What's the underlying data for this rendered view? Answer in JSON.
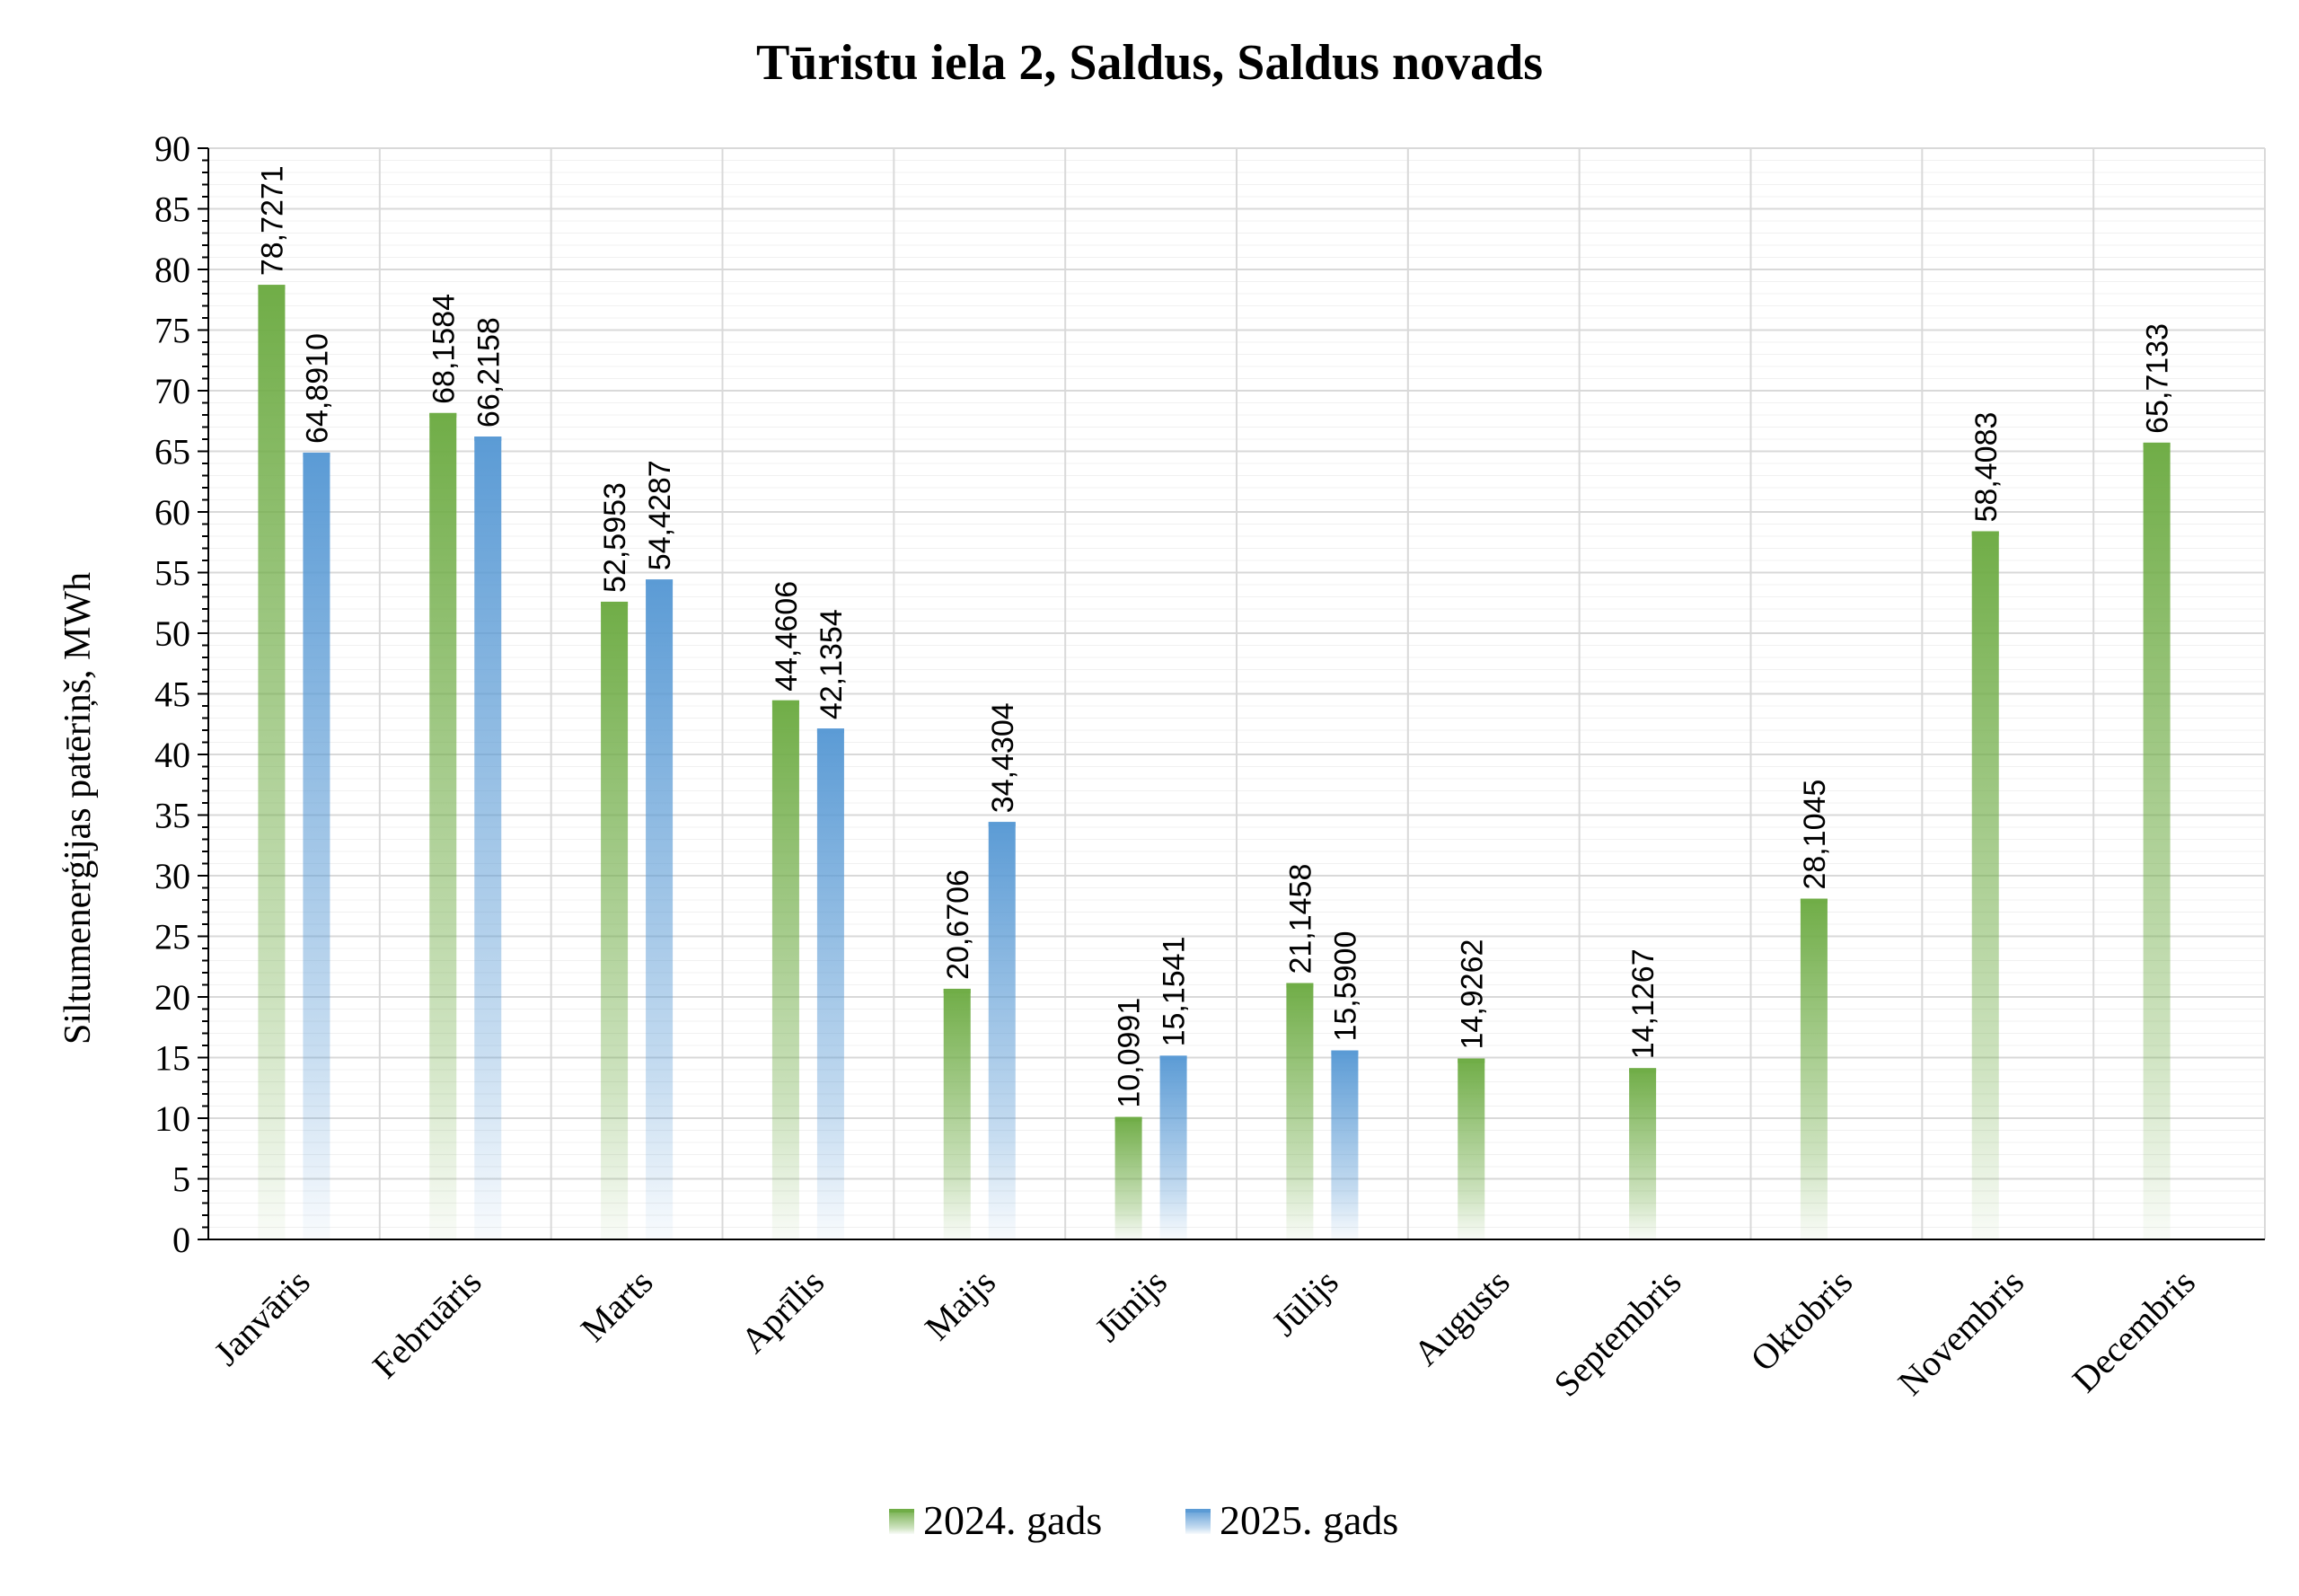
{
  "chart_data": {
    "type": "bar",
    "title": "Tūristu iela 2, Saldus, Saldus novads",
    "ylabel": "Siltumenerģijas patēriņš, MWh",
    "xlabel": "",
    "ylim": [
      0,
      90
    ],
    "ytick_step": 5,
    "grid": true,
    "legend_position": "bottom",
    "categories": [
      "Janvāris",
      "Februāris",
      "Marts",
      "Aprīlis",
      "Maijs",
      "Jūnijs",
      "Jūlijs",
      "Augusts",
      "Septembris",
      "Oktobris",
      "Novembris",
      "Decembris"
    ],
    "series": [
      {
        "name": "2024. gads",
        "color": "#70AD47",
        "values": [
          78.7271,
          68.1584,
          52.5953,
          44.4606,
          20.6706,
          10.0991,
          21.1458,
          14.9262,
          14.1267,
          28.1045,
          58.4083,
          65.7133
        ],
        "labels": [
          "78,7271",
          "68,1584",
          "52,5953",
          "44,4606",
          "20,6706",
          "10,0991",
          "21,1458",
          "14,9262",
          "14,1267",
          "28,1045",
          "58,4083",
          "65,7133"
        ]
      },
      {
        "name": "2025. gads",
        "color": "#5B9BD5",
        "values": [
          64.891,
          66.2158,
          54.4287,
          42.1354,
          34.4304,
          15.1541,
          15.59,
          null,
          null,
          null,
          null,
          null
        ],
        "labels": [
          "64,8910",
          "66,2158",
          "54,4287",
          "42,1354",
          "34,4304",
          "15,1541",
          "15,5900",
          null,
          null,
          null,
          null,
          null
        ]
      }
    ]
  }
}
